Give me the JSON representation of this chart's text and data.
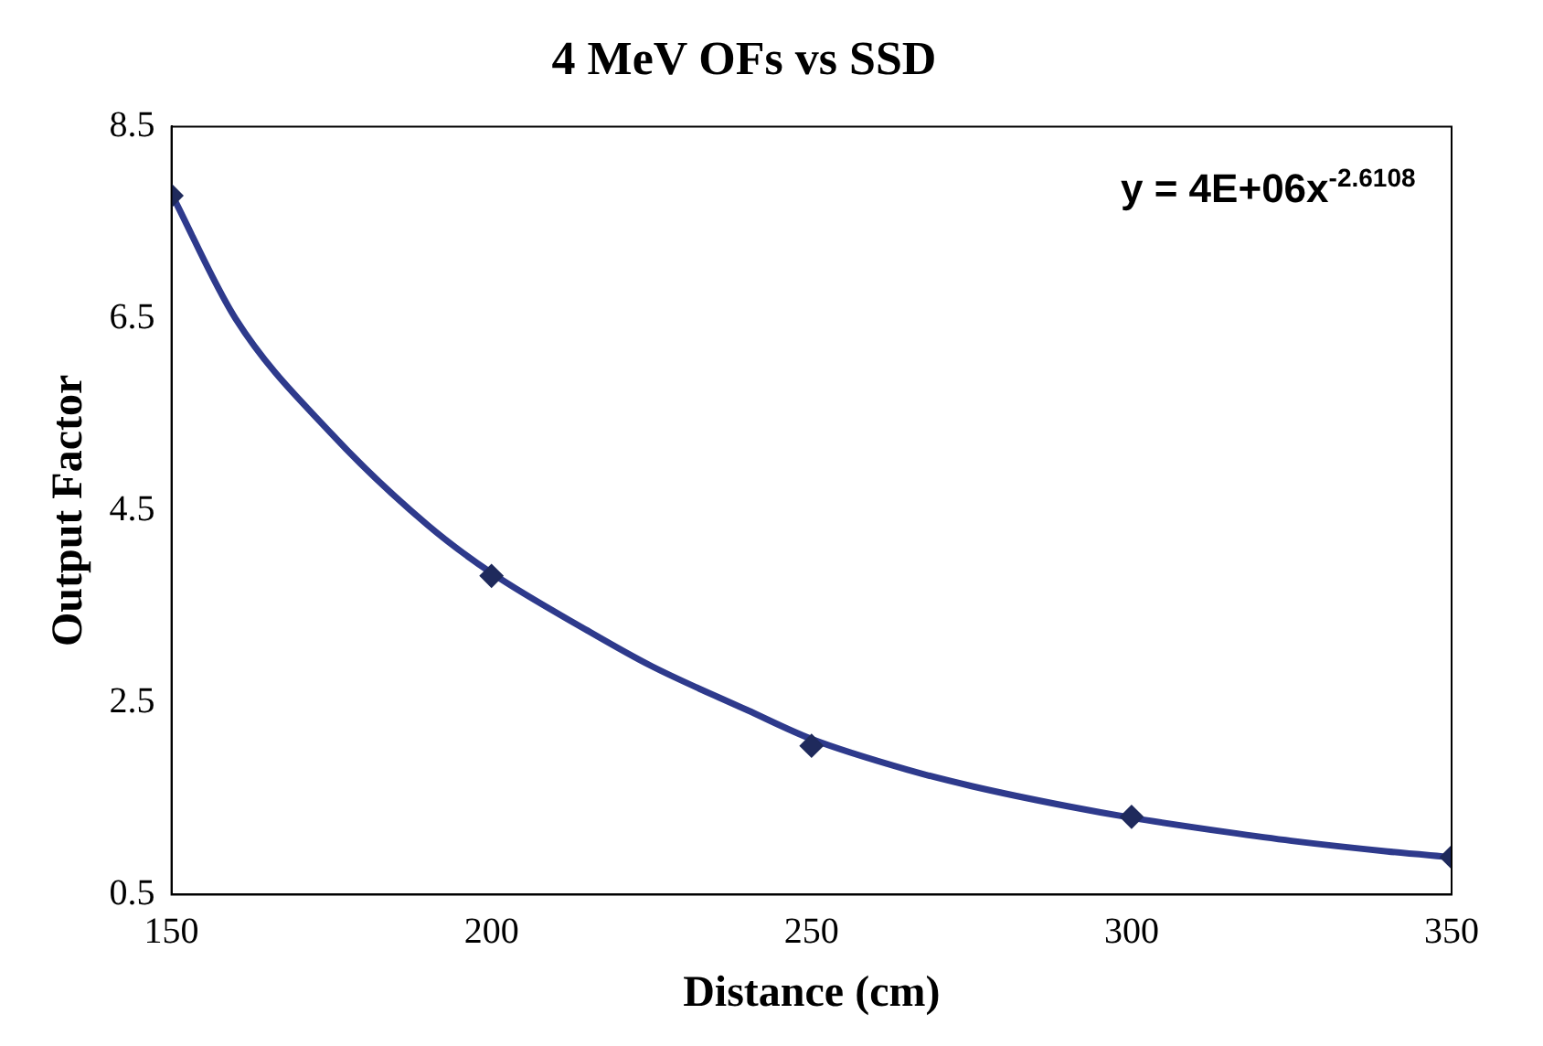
{
  "chart_data": {
    "type": "scatter",
    "title": "4 MeV OFs vs SSD",
    "xlabel": "Distance (cm)",
    "ylabel": "Output Factor",
    "x": [
      150,
      200,
      250,
      300,
      350
    ],
    "series": [
      {
        "type": "scatter",
        "color": "#1f2a5c",
        "values": [
          7.78,
          3.82,
          2.05,
          1.31,
          0.89
        ],
        "marker": "diamond"
      },
      {
        "type": "line",
        "color": "#2e3a8c",
        "x": [
          150,
          160,
          175,
          190,
          200,
          215,
          225,
          240,
          250,
          265,
          275,
          290,
          300,
          315,
          325,
          340,
          350
        ],
        "values": [
          7.8,
          6.5,
          5.3,
          4.35,
          3.85,
          3.25,
          2.88,
          2.42,
          2.12,
          1.8,
          1.63,
          1.42,
          1.3,
          1.15,
          1.06,
          0.95,
          0.89
        ],
        "marker": "none",
        "line_style": "solid"
      }
    ],
    "xlim": [
      150,
      350
    ],
    "xticks": [
      150,
      200,
      250,
      300,
      350
    ],
    "ylim": [
      0.5,
      8.5
    ],
    "yticks": [
      0.5,
      2.5,
      4.5,
      6.5,
      8.5
    ],
    "grid": false,
    "legend": false,
    "annotations": [
      "y = 4E+06x$^{-2.6108}$"
    ]
  }
}
